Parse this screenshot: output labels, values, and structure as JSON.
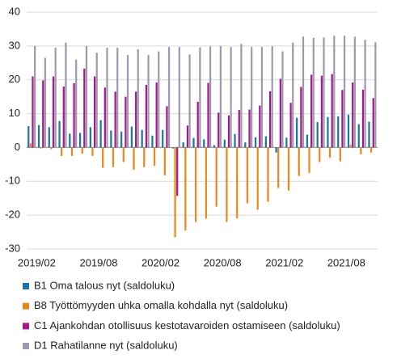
{
  "chart_data": {
    "type": "bar",
    "categories": [
      "2019/02",
      null,
      null,
      null,
      null,
      null,
      "2019/08",
      null,
      null,
      null,
      null,
      null,
      "2020/02",
      null,
      null,
      null,
      null,
      null,
      "2020/08",
      null,
      null,
      null,
      null,
      null,
      "2021/02",
      null,
      null,
      null,
      null,
      null,
      "2021/08",
      null,
      null,
      null
    ],
    "series": [
      {
        "name": "B1 Oma talous nyt (saldoluku)",
        "color": "#1b75a8",
        "values": [
          6.3,
          6.6,
          6.0,
          7.8,
          4.1,
          4.3,
          6.0,
          8.1,
          5.0,
          4.7,
          6.2,
          5.2,
          3.5,
          5.2,
          -0.3,
          1.5,
          2.8,
          2.4,
          0.7,
          2.3,
          4.0,
          1.5,
          3.0,
          3.3,
          -1.5,
          2.9,
          8.8,
          3.8,
          7.5,
          9.0,
          9.2,
          9.7,
          6.9,
          7.6
        ]
      },
      {
        "name": "B8 Työttömyyden uhka omalla kohdalla nyt (saldoluku)",
        "color": "#e8891c",
        "values": [
          1.2,
          -0.3,
          -0.5,
          -2.5,
          -2.5,
          -1.8,
          -2.5,
          -6.0,
          -5.8,
          -4.3,
          -6.6,
          -5.8,
          -5.4,
          -8.2,
          -26.5,
          -24.5,
          -22.0,
          -21.0,
          -17.5,
          -22.0,
          -20.9,
          -16.5,
          -18.4,
          -16.0,
          -12.0,
          -12.7,
          -8.4,
          -7.5,
          -4.3,
          -3.0,
          -4.1,
          0.8,
          -2.0,
          -1.5
        ]
      },
      {
        "name": "C1 Ajankohdan otollisuus kestotavaroiden ostamiseen (saldoluku)",
        "color": "#a3178d",
        "values": [
          21.0,
          19.8,
          21.0,
          18.0,
          19.0,
          23.3,
          21.0,
          17.7,
          16.5,
          15.0,
          16.5,
          18.5,
          19.2,
          12.2,
          -14.3,
          6.5,
          13.5,
          19.1,
          10.3,
          9.5,
          11.1,
          11.2,
          12.4,
          16.6,
          20.3,
          13.2,
          17.9,
          21.5,
          21.2,
          21.7,
          17.0,
          19.2,
          17.1,
          14.6
        ]
      },
      {
        "name": "D1  Rahatilanne nyt (saldoluku)",
        "color": "#9c9bab",
        "values": [
          30.0,
          26.5,
          29.5,
          31.0,
          26.0,
          30.0,
          28.0,
          29.5,
          29.5,
          27.3,
          29.0,
          27.3,
          28.4,
          29.7,
          29.7,
          27.5,
          29.6,
          29.9,
          30.0,
          29.7,
          30.6,
          29.7,
          29.7,
          29.9,
          28.4,
          31.0,
          32.8,
          32.4,
          32.5,
          33.0,
          33.0,
          32.7,
          31.8,
          31.1
        ]
      }
    ],
    "ylim": [
      -30,
      40
    ],
    "yticks": [
      -30,
      -20,
      -10,
      0,
      10,
      20,
      30,
      40
    ],
    "grid": true
  }
}
